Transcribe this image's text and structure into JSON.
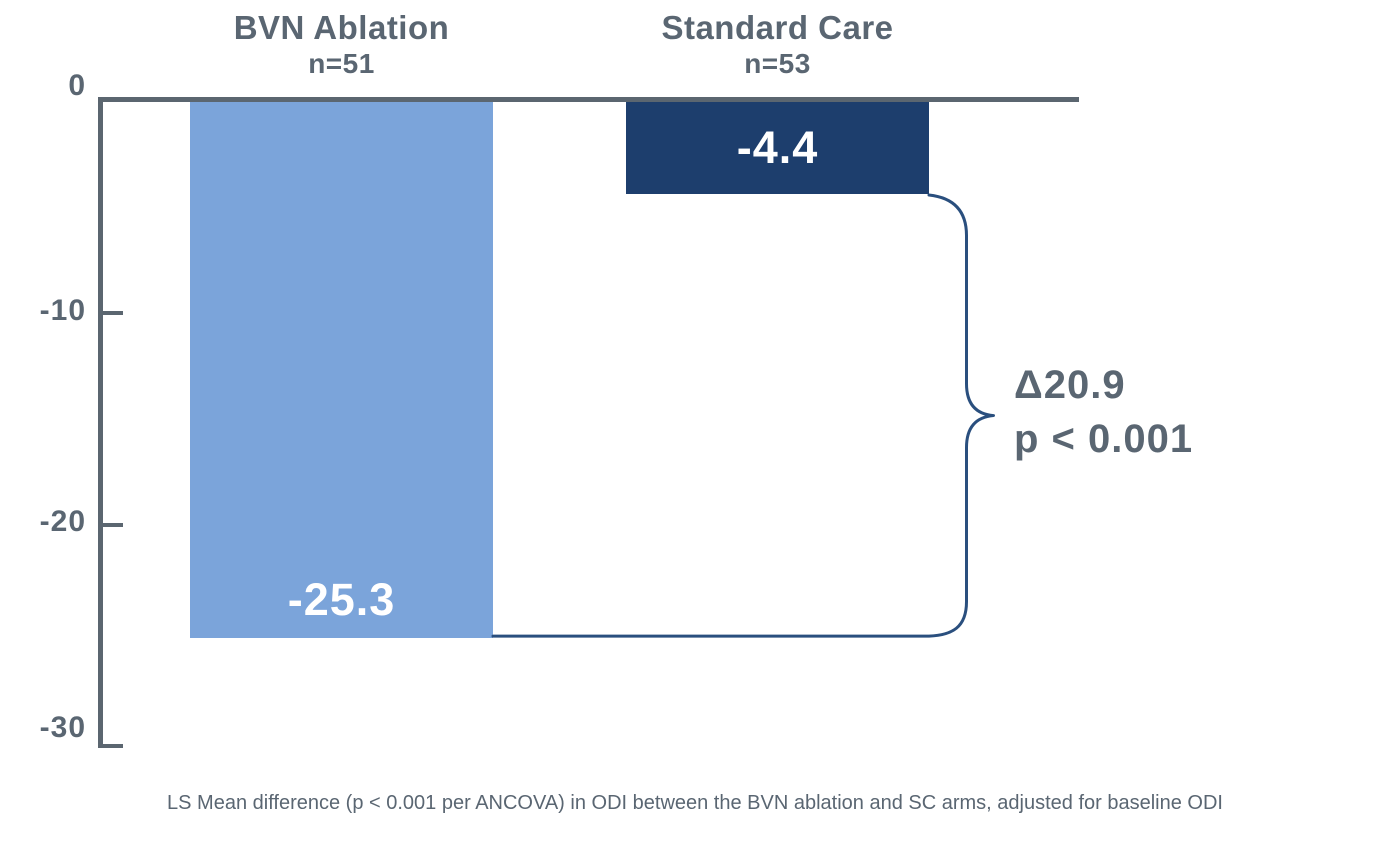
{
  "chart_data": {
    "type": "bar",
    "title": "",
    "categories": [
      "BVN Ablation",
      "Standard Care"
    ],
    "category_sublabels": [
      "n=51",
      "n=53"
    ],
    "values": [
      -25.3,
      -4.4
    ],
    "bar_labels": [
      "-25.3",
      "-4.4"
    ],
    "bar_colors": [
      "#7BA4DA",
      "#1D3E6D"
    ],
    "xlabel": "",
    "ylabel": "",
    "ylim": [
      -30,
      0
    ],
    "yticks": [
      0,
      -10,
      -20,
      -30
    ],
    "ytick_labels": [
      "0",
      "-10",
      "-20",
      "-30"
    ],
    "grid": false,
    "legend_position": "none",
    "annotations": {
      "delta_label": "Δ20.9",
      "delta_value": 20.9,
      "p_value_label": "p < 0.001"
    },
    "footnote": "LS Mean difference (p < 0.001 per ANCOVA) in ODI between the BVN ablation and SC arms, adjusted for baseline ODI"
  },
  "colors": {
    "background": "#FFFFFF",
    "text": "#5A6672",
    "axis": "#5B6670",
    "brace": "#2A4F7E",
    "bar_value_text": "#FFFFFF",
    "bar_light": "#7BA4DA",
    "bar_dark": "#1D3E6D"
  }
}
